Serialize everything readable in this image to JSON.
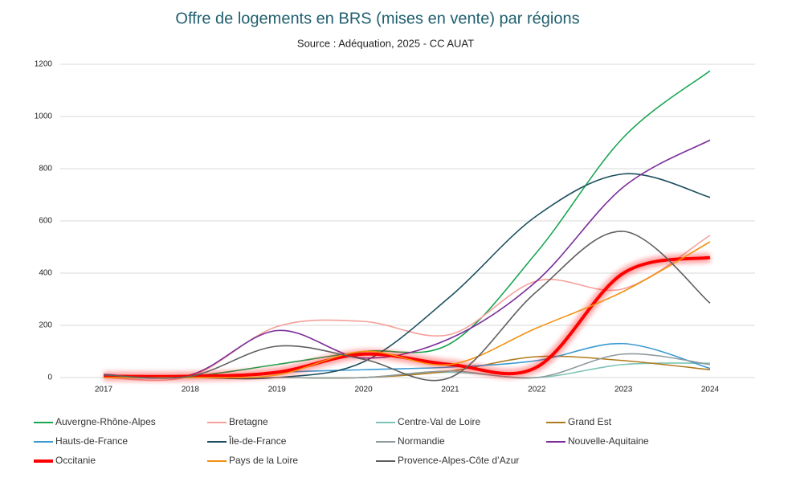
{
  "chart_data": {
    "type": "line",
    "title": "Offre de logements en BRS (mises en vente) par régions",
    "subtitle": "Source : Adéquation, 2025 - CC AUAT",
    "categories": [
      "2017",
      "2018",
      "2019",
      "2020",
      "2021",
      "2022",
      "2023",
      "2024"
    ],
    "ylim": [
      0,
      1200
    ],
    "yticks": [
      0,
      200,
      400,
      600,
      800,
      1000,
      1200
    ],
    "grid": true,
    "smooth": true,
    "legend": "bottom",
    "series": [
      {
        "name": "Auvergne-Rhône-Alpes",
        "color": "#1aa552",
        "values": [
          0,
          5,
          50,
          100,
          130,
          480,
          920,
          1175
        ]
      },
      {
        "name": "Bretagne",
        "color": "#f4a09a",
        "values": [
          0,
          5,
          195,
          215,
          165,
          370,
          340,
          545
        ]
      },
      {
        "name": "Centre-Val de Loire",
        "color": "#7cc4b6",
        "values": [
          0,
          0,
          0,
          0,
          20,
          0,
          50,
          55
        ]
      },
      {
        "name": "Grand Est",
        "color": "#b07a1e",
        "values": [
          0,
          0,
          0,
          0,
          25,
          80,
          65,
          30
        ]
      },
      {
        "name": "Hauts-de-France",
        "color": "#3b9ad3",
        "values": [
          0,
          0,
          20,
          30,
          40,
          65,
          130,
          35
        ]
      },
      {
        "name": "Île-de-France",
        "color": "#1d4f5e",
        "values": [
          0,
          0,
          0,
          60,
          310,
          620,
          780,
          690
        ]
      },
      {
        "name": "Normandie",
        "color": "#8f9a9c",
        "values": [
          0,
          0,
          0,
          0,
          25,
          0,
          90,
          50
        ]
      },
      {
        "name": "Nouvelle-Aquitaine",
        "color": "#7a2e9a",
        "values": [
          12,
          10,
          180,
          75,
          150,
          370,
          730,
          910
        ]
      },
      {
        "name": "Occitanie",
        "color": "#ff0000",
        "width": 4,
        "glow": true,
        "values": [
          5,
          5,
          20,
          90,
          50,
          40,
          400,
          460
        ]
      },
      {
        "name": "Pays de la Loire",
        "color": "#f2910f",
        "values": [
          0,
          0,
          10,
          100,
          50,
          190,
          330,
          520
        ]
      },
      {
        "name": "Provence-Alpes-Côte d’Azur",
        "color": "#5f5f5f",
        "values": [
          10,
          5,
          120,
          70,
          0,
          330,
          560,
          285
        ]
      }
    ]
  }
}
